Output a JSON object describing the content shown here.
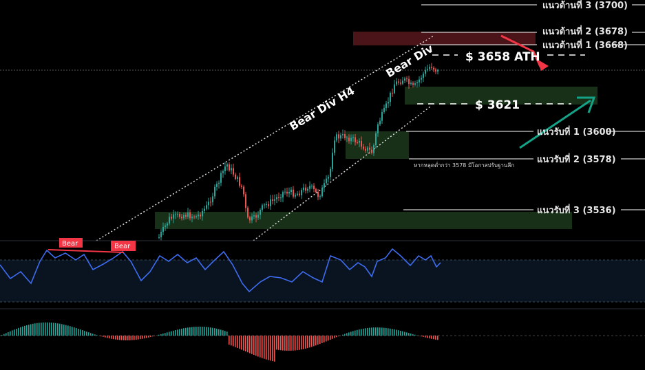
{
  "chart_data": {
    "type": "candlestick",
    "resistance": [
      {
        "label": "แนวต้านที่ 3 (3700)",
        "price": 3700
      },
      {
        "label": "แนวต้านที่ 2 (3678)",
        "price": 3678
      },
      {
        "label": "แนวต้านที่ 1 (3668)",
        "price": 3668
      }
    ],
    "support": [
      {
        "label": "แนวรับที่ 1 (3600)",
        "price": 3600
      },
      {
        "label": "แนวรับที่ 2 (3578)",
        "price": 3578
      },
      {
        "label": "แนวรับที่ 3 (3536)",
        "price": 3536
      }
    ],
    "ath_label": "$ 3658 ATH",
    "ath_price": 3658,
    "level_label": "$ 3621",
    "level_price": 3621,
    "channel_text": "Bear Div H4",
    "channel_text2": "Bear Div",
    "note": "หากหลุดต่ำกว่า 3578 มีโอกาสปรับฐานลึก",
    "rsi_tags": [
      "Bear",
      "Bear"
    ],
    "colors": {
      "up": "#26a69a",
      "down": "#ef5350",
      "rsi": "#3d6cf0",
      "zone_green": "#173017",
      "zone_red": "#4a1419",
      "arrow_red": "#f23645",
      "arrow_green": "#14a388"
    }
  }
}
